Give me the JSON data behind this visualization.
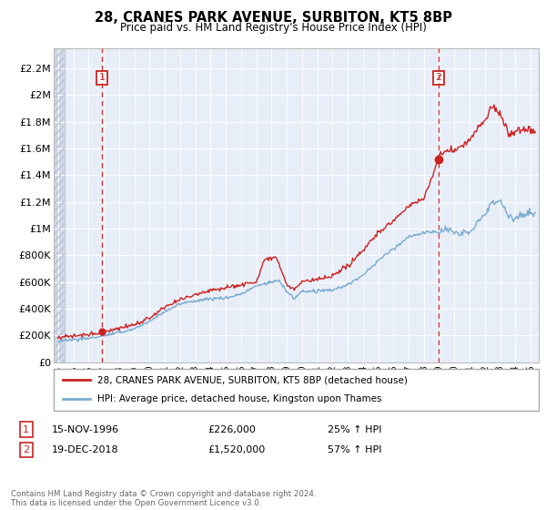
{
  "title": "28, CRANES PARK AVENUE, SURBITON, KT5 8BP",
  "subtitle": "Price paid vs. HM Land Registry's House Price Index (HPI)",
  "ylabel_ticks": [
    "£0",
    "£200K",
    "£400K",
    "£600K",
    "£800K",
    "£1M",
    "£1.2M",
    "£1.4M",
    "£1.6M",
    "£1.8M",
    "£2M",
    "£2.2M"
  ],
  "ytick_values": [
    0,
    200000,
    400000,
    600000,
    800000,
    1000000,
    1200000,
    1400000,
    1600000,
    1800000,
    2000000,
    2200000
  ],
  "ylim": [
    0,
    2350000
  ],
  "xlim_start": 1993.7,
  "xlim_end": 2025.5,
  "purchase1_date": 1996.877,
  "purchase1_price": 226000,
  "purchase2_date": 2018.96,
  "purchase2_price": 1520000,
  "hpi_color": "#7aaad0",
  "price_color": "#cc2222",
  "vline_color": "#cc2222",
  "background_plot": "#e8eef8",
  "grid_color": "#ffffff",
  "legend_line1": "28, CRANES PARK AVENUE, SURBITON, KT5 8BP (detached house)",
  "legend_line2": "HPI: Average price, detached house, Kingston upon Thames",
  "annotation1_date": "15-NOV-1996",
  "annotation1_price": "£226,000",
  "annotation1_pct": "25% ↑ HPI",
  "annotation2_date": "19-DEC-2018",
  "annotation2_price": "£1,520,000",
  "annotation2_pct": "57% ↑ HPI",
  "footer": "Contains HM Land Registry data © Crown copyright and database right 2024.\nThis data is licensed under the Open Government Licence v3.0.",
  "xtick_years": [
    1994,
    1995,
    1996,
    1997,
    1998,
    1999,
    2000,
    2001,
    2002,
    2003,
    2004,
    2005,
    2006,
    2007,
    2008,
    2009,
    2010,
    2011,
    2012,
    2013,
    2014,
    2015,
    2016,
    2017,
    2018,
    2019,
    2020,
    2021,
    2022,
    2023,
    2024,
    2025
  ]
}
